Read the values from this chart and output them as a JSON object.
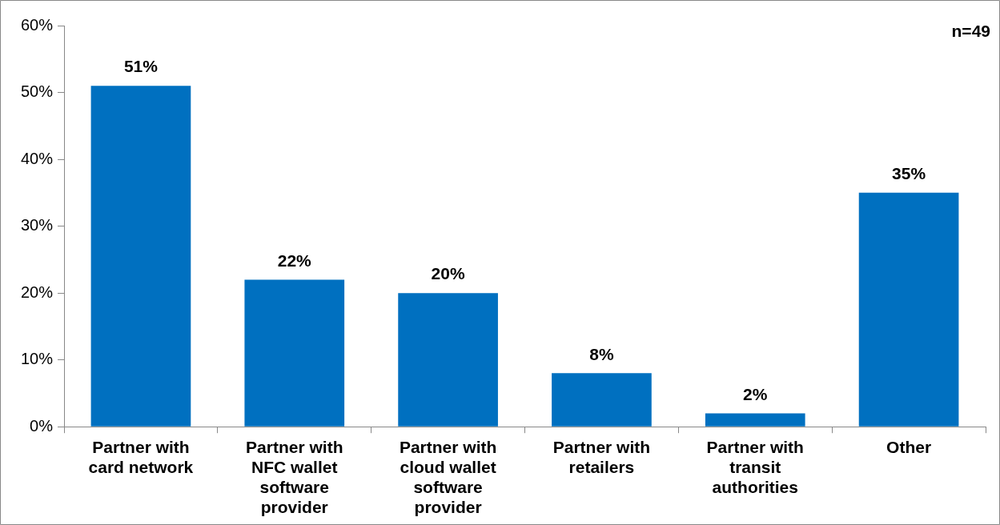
{
  "chart_data": {
    "type": "bar",
    "categories": [
      "Partner with card network",
      "Partner with NFC wallet software provider",
      "Partner with cloud wallet software provider",
      "Partner with retailers",
      "Partner with transit authorities",
      "Other"
    ],
    "values": [
      51,
      22,
      20,
      8,
      2,
      35
    ],
    "value_labels": [
      "51%",
      "22%",
      "20%",
      "8%",
      "2%",
      "35%"
    ],
    "color": "#0070c0",
    "ylim": [
      0,
      60
    ],
    "yticks": [
      {
        "value": 0,
        "label": "0%"
      },
      {
        "value": 10,
        "label": "10%"
      },
      {
        "value": 20,
        "label": "20%"
      },
      {
        "value": 30,
        "label": "30%"
      },
      {
        "value": 40,
        "label": "40%"
      },
      {
        "value": 50,
        "label": "50%"
      },
      {
        "value": 60,
        "label": "60%"
      }
    ],
    "grid": false,
    "legend": false,
    "annotations": [
      "n=49"
    ]
  }
}
